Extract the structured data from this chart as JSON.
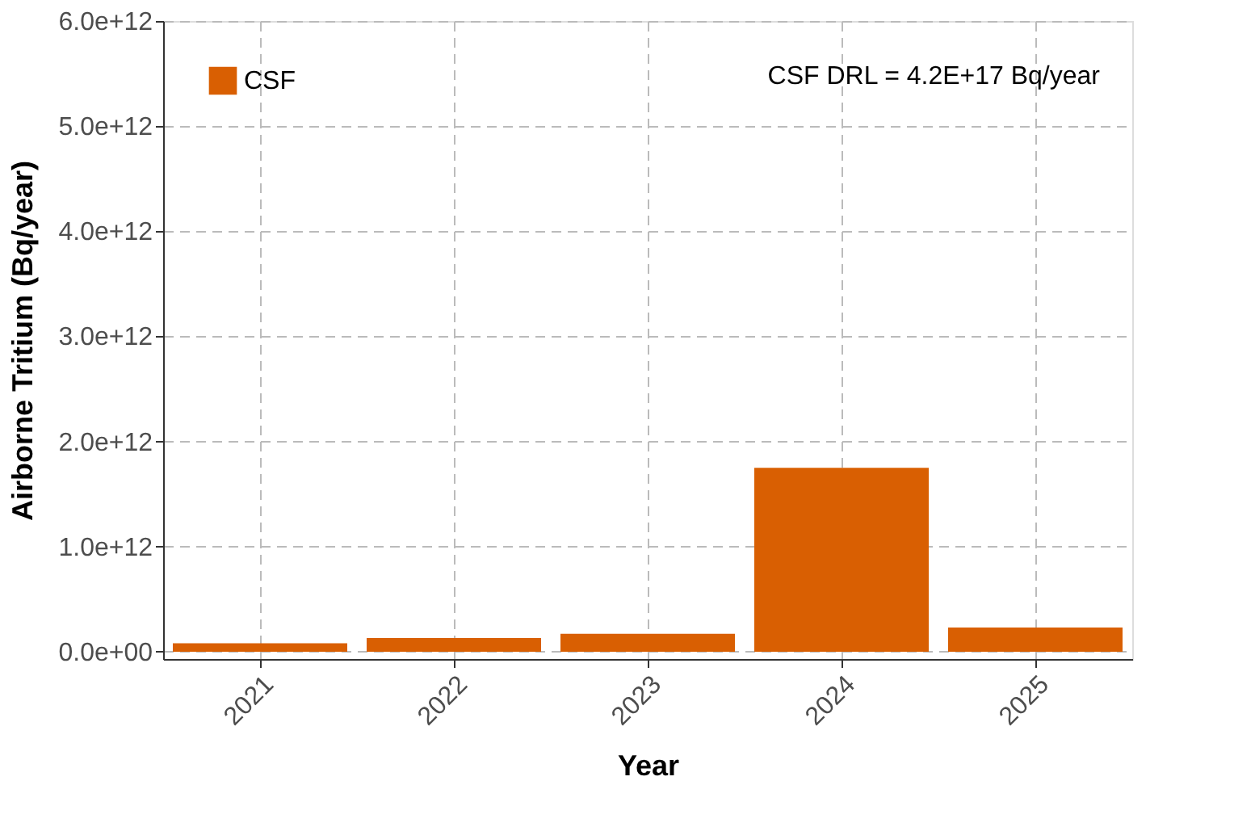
{
  "chart_data": {
    "type": "bar",
    "xlabel": "Year",
    "ylabel": "Airborne Tritium (Bq/year)",
    "categories": [
      "2021",
      "2022",
      "2023",
      "2024",
      "2025"
    ],
    "series": [
      {
        "name": "CSF",
        "color": "#d95f02",
        "values": [
          80000000000.0,
          130000000000.0,
          170000000000.0,
          1750000000000.0,
          230000000000.0
        ]
      }
    ],
    "ylim": [
      -70000000000.0,
      6000000000000.0
    ],
    "yticks": [
      {
        "value": 0,
        "label": "0.0e+00"
      },
      {
        "value": 1000000000000.0,
        "label": "1.0e+12"
      },
      {
        "value": 2000000000000.0,
        "label": "2.0e+12"
      },
      {
        "value": 3000000000000.0,
        "label": "3.0e+12"
      },
      {
        "value": 4000000000000.0,
        "label": "4.0e+12"
      },
      {
        "value": 5000000000000.0,
        "label": "5.0e+12"
      },
      {
        "value": 6000000000000.0,
        "label": "6.0e+12"
      }
    ],
    "annotations": [
      "CSF DRL = 4.2E+17 Bq/year"
    ],
    "grid": true,
    "legend": "top left"
  }
}
